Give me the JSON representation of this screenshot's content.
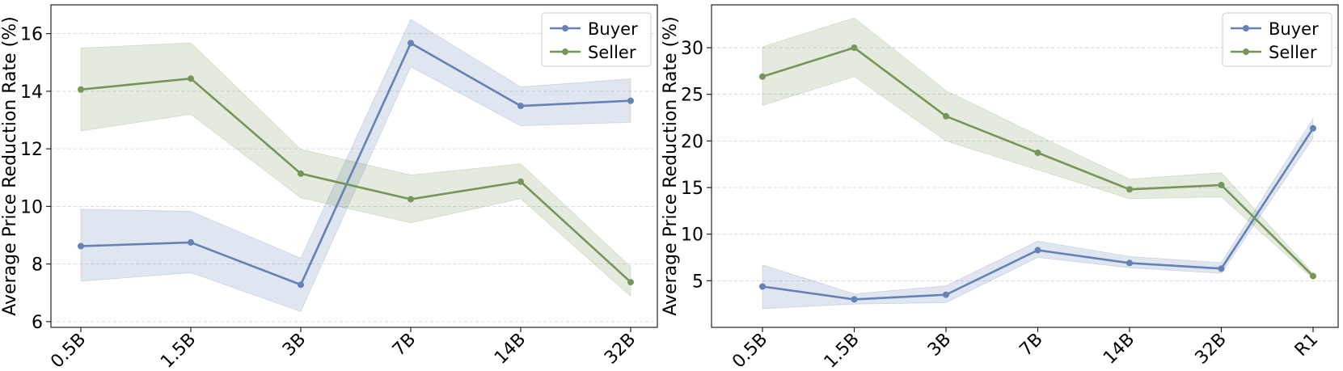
{
  "chart_data": [
    {
      "type": "line",
      "title": "",
      "xlabel": "",
      "ylabel": "Average Price Reduction Rate (%)",
      "categories": [
        "0.5B",
        "1.5B",
        "3B",
        "7B",
        "14B",
        "32B"
      ],
      "ylim": [
        5.8,
        17.0
      ],
      "yticks": [
        6,
        8,
        10,
        12,
        14,
        16
      ],
      "grid": "horizontal dashed",
      "legend": "top-right",
      "series": [
        {
          "name": "Buyer",
          "color": "#6581b5",
          "values": [
            8.62,
            8.75,
            7.28,
            15.67,
            13.49,
            13.67
          ],
          "band_low": [
            7.4,
            7.7,
            6.35,
            14.85,
            12.8,
            12.92
          ],
          "band_high": [
            9.9,
            9.83,
            8.2,
            16.5,
            14.15,
            14.43
          ]
        },
        {
          "name": "Seller",
          "color": "#769659",
          "values": [
            14.06,
            14.44,
            11.14,
            10.25,
            10.86,
            7.37
          ],
          "band_low": [
            12.62,
            13.2,
            10.3,
            9.43,
            10.27,
            6.88
          ],
          "band_high": [
            15.5,
            15.68,
            11.98,
            11.09,
            11.48,
            7.9
          ]
        }
      ]
    },
    {
      "type": "line",
      "title": "",
      "xlabel": "",
      "ylabel": "Average Price Reduction Rate (%)",
      "categories": [
        "0.5B",
        "1.5B",
        "3B",
        "7B",
        "14B",
        "32B",
        "R1"
      ],
      "ylim": [
        0.0,
        34.6
      ],
      "yticks": [
        5,
        10,
        15,
        20,
        25,
        30
      ],
      "grid": "horizontal dashed",
      "legend": "top-right",
      "series": [
        {
          "name": "Buyer",
          "color": "#6581b5",
          "values": [
            4.38,
            3.0,
            3.5,
            8.28,
            6.9,
            6.3,
            21.35
          ],
          "band_low": [
            2.0,
            2.5,
            2.65,
            7.5,
            6.4,
            5.8,
            20.3
          ],
          "band_high": [
            6.7,
            3.6,
            4.45,
            9.25,
            7.6,
            6.95,
            22.4
          ]
        },
        {
          "name": "Seller",
          "color": "#769659",
          "values": [
            26.9,
            30.0,
            22.65,
            18.73,
            14.8,
            15.27,
            5.5
          ],
          "band_low": [
            23.8,
            26.9,
            20.0,
            16.9,
            13.8,
            14.0,
            5.2
          ],
          "band_high": [
            30.1,
            33.2,
            25.4,
            20.6,
            15.9,
            16.6,
            5.8
          ]
        }
      ]
    }
  ]
}
